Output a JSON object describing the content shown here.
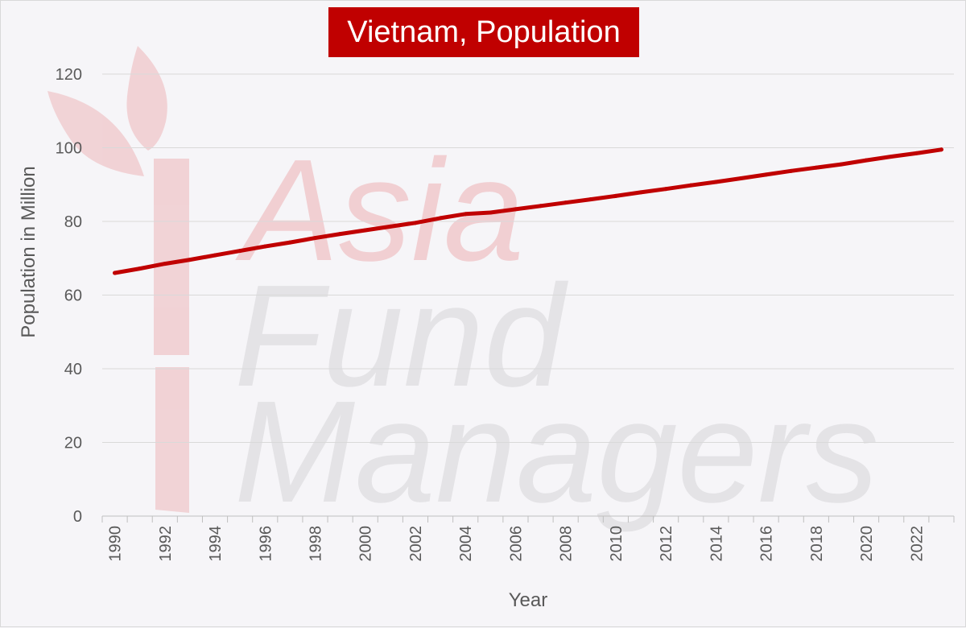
{
  "chart_data": {
    "type": "line",
    "title": "Vietnam, Population",
    "xlabel": "Year",
    "ylabel": "Population in Million",
    "xlim": [
      1990,
      2023
    ],
    "ylim": [
      0,
      120
    ],
    "y_ticks": [
      0,
      20,
      40,
      60,
      80,
      100,
      120
    ],
    "x_tick_labels": [
      "1990",
      "1992",
      "1994",
      "1996",
      "1998",
      "2000",
      "2002",
      "2004",
      "2006",
      "2008",
      "2010",
      "2012",
      "2014",
      "2016",
      "2018",
      "2020",
      "2022"
    ],
    "grid": "horizontal",
    "legend": "none",
    "series": [
      {
        "color": "#c00000",
        "x": [
          1990,
          1991,
          1992,
          1993,
          1994,
          1995,
          1996,
          1997,
          1998,
          1999,
          2000,
          2001,
          2002,
          2003,
          2004,
          2005,
          2006,
          2007,
          2008,
          2009,
          2010,
          2011,
          2012,
          2013,
          2014,
          2015,
          2016,
          2017,
          2018,
          2019,
          2020,
          2021,
          2022,
          2023
        ],
        "values": [
          66.0,
          67.2,
          68.5,
          69.6,
          70.8,
          72.0,
          73.2,
          74.3,
          75.5,
          76.6,
          77.6,
          78.6,
          79.6,
          80.9,
          82.0,
          82.4,
          83.3,
          84.2,
          85.1,
          86.0,
          86.9,
          87.9,
          88.8,
          89.8,
          90.7,
          91.7,
          92.7,
          93.7,
          94.6,
          95.5,
          96.6,
          97.6,
          98.5,
          99.5
        ]
      }
    ]
  },
  "watermark": {
    "line1": "Asia",
    "line2": "Fund",
    "line3": "Managers",
    "accent_color": "#f1cfd2",
    "text_color": "#e4e3e6"
  }
}
